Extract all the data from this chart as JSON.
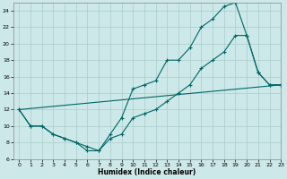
{
  "xlabel": "Humidex (Indice chaleur)",
  "background_color": "#cce8e8",
  "line_color": "#006666",
  "grid_color": "#aacccc",
  "line1_x": [
    0,
    1,
    2,
    3,
    4,
    5,
    6,
    7,
    8,
    9,
    10,
    11,
    12,
    13,
    14,
    15,
    16,
    17,
    18,
    19,
    20,
    21,
    22,
    23
  ],
  "line1_y": [
    12,
    10,
    10,
    9,
    8.5,
    8,
    7,
    7,
    9,
    11,
    14.5,
    15,
    15.5,
    18,
    18,
    19.5,
    22,
    23,
    24.5,
    25,
    21,
    16.5,
    15,
    15
  ],
  "line2_x": [
    0,
    1,
    2,
    3,
    4,
    5,
    6,
    7,
    8,
    9,
    10,
    11,
    12,
    13,
    14,
    15,
    16,
    17,
    18,
    19,
    20,
    21,
    22,
    23
  ],
  "line2_y": [
    12,
    10,
    10,
    9,
    8.5,
    8,
    7.5,
    7,
    8.5,
    9,
    11,
    11.5,
    12,
    13,
    14,
    15,
    17,
    18,
    19,
    21,
    21,
    16.5,
    15,
    15
  ],
  "line3_x": [
    0,
    23
  ],
  "line3_y": [
    12,
    15
  ],
  "ylim": [
    6,
    25
  ],
  "xlim": [
    -0.5,
    23
  ],
  "yticks": [
    6,
    8,
    10,
    12,
    14,
    16,
    18,
    20,
    22,
    24
  ],
  "xticks": [
    0,
    1,
    2,
    3,
    4,
    5,
    6,
    7,
    8,
    9,
    10,
    11,
    12,
    13,
    14,
    15,
    16,
    17,
    18,
    19,
    20,
    21,
    22,
    23
  ]
}
